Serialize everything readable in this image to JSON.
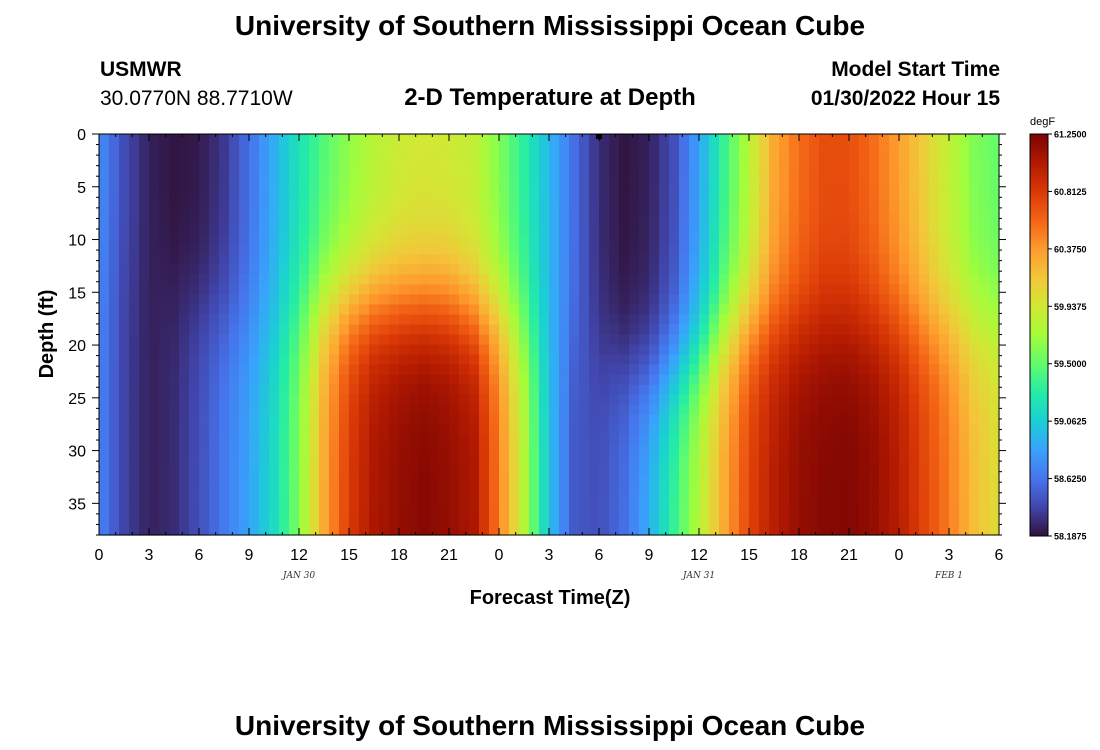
{
  "page": {
    "title": "University of Southern Mississippi Ocean Cube",
    "title_repeat": "University of Southern Mississippi Ocean Cube",
    "station": "USMWR",
    "coords": "30.0770N  88.7710W",
    "subtitle": "2-D Temperature at Depth",
    "model_label": "Model Start Time",
    "model_time": "01/30/2022 Hour 15"
  },
  "chart_data": {
    "type": "heatmap",
    "title": "2-D Temperature at Depth",
    "xlabel": "Forecast Time(Z)",
    "ylabel": "Depth (ft)",
    "x_tick_labels": [
      "0",
      "3",
      "6",
      "9",
      "12",
      "15",
      "18",
      "21",
      "0",
      "3",
      "6",
      "9",
      "12",
      "15",
      "18",
      "21",
      "0",
      "3",
      "6"
    ],
    "x_range_hours": [
      0,
      54
    ],
    "date_labels": [
      {
        "label": "JAN 30",
        "at_hour": 12
      },
      {
        "label": "JAN 31",
        "at_hour": 36
      },
      {
        "label": "FEB 1",
        "at_hour": 51
      }
    ],
    "y_ticks": [
      0,
      5,
      10,
      15,
      20,
      25,
      30,
      35
    ],
    "y_range": [
      0,
      38
    ],
    "y_inverted": true,
    "colorbar": {
      "unit": "degF",
      "min": 58.1875,
      "max": 61.25,
      "labels": [
        "61.2500",
        "60.8125",
        "60.3750",
        "59.9375",
        "59.5000",
        "59.0625",
        "58.6250",
        "58.1875"
      ],
      "colors": [
        "#30123b",
        "#4145ab",
        "#4675ed",
        "#39a2fc",
        "#1bcfd4",
        "#24eca6",
        "#61fc6c",
        "#a4fc3b",
        "#d1e834",
        "#f3c63a",
        "#fe9b2d",
        "#f36315",
        "#d93806",
        "#b11901",
        "#7a0403"
      ]
    },
    "time_hours": [
      0,
      1.5,
      3,
      4.5,
      6,
      7.5,
      9,
      10.5,
      12,
      13.5,
      15,
      16.5,
      18,
      19.5,
      21,
      22.5,
      24,
      25.5,
      27,
      28.5,
      30,
      31.5,
      33,
      34.5,
      36,
      37.5,
      39,
      40.5,
      42,
      43.5,
      45,
      46.5,
      48,
      49.5,
      51,
      52.5,
      54
    ],
    "surface_temp": [
      58.75,
      58.45,
      58.25,
      58.2,
      58.22,
      58.35,
      58.6,
      58.9,
      59.2,
      59.45,
      59.65,
      59.8,
      59.9,
      59.93,
      59.92,
      59.85,
      59.6,
      59.3,
      58.95,
      58.6,
      58.3,
      58.2,
      58.25,
      58.45,
      58.85,
      59.35,
      59.8,
      60.3,
      60.55,
      60.7,
      60.7,
      60.55,
      60.35,
      60.1,
      59.85,
      59.6,
      59.5
    ],
    "bottom_temp": [
      58.7,
      58.4,
      58.25,
      58.3,
      58.45,
      58.65,
      58.85,
      59.15,
      59.6,
      60.3,
      60.8,
      61.05,
      61.15,
      61.2,
      61.15,
      61.05,
      60.5,
      59.8,
      59.0,
      58.5,
      58.45,
      58.6,
      58.9,
      59.35,
      59.8,
      60.3,
      60.75,
      61.0,
      61.15,
      61.2,
      61.22,
      61.15,
      61.0,
      60.75,
      60.5,
      60.2,
      60.0
    ],
    "mixing_depth_ft": [
      12,
      12,
      14,
      15,
      16,
      17,
      18,
      18,
      17,
      16,
      16,
      16,
      16,
      16,
      16,
      17,
      17,
      18,
      19,
      20,
      21,
      22,
      23,
      22,
      21,
      19,
      18,
      18,
      18,
      18,
      18,
      18,
      18,
      18,
      18,
      18,
      18
    ]
  }
}
